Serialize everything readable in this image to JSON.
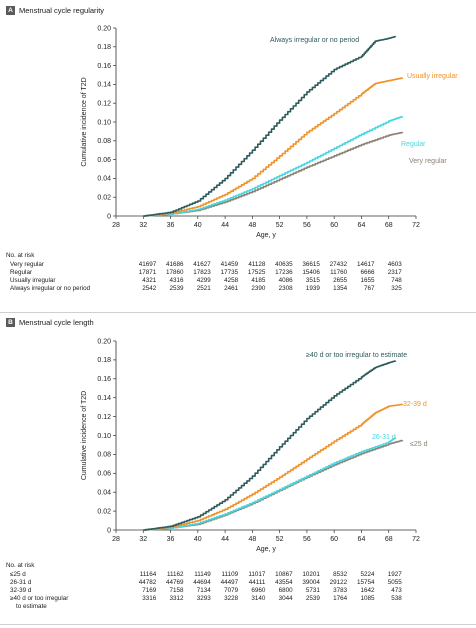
{
  "chart_data": [
    {
      "id": "A",
      "type": "line",
      "panel_label": "A",
      "title": "Menstrual cycle regularity",
      "xlabel": "Age, y",
      "ylabel": "Cumulative incidence of T2D",
      "xlim": [
        28,
        72
      ],
      "ylim": [
        0,
        0.2
      ],
      "xticks": [
        "28",
        "32",
        "36",
        "40",
        "44",
        "48",
        "52",
        "56",
        "60",
        "64",
        "68",
        "72"
      ],
      "yticks": [
        "0",
        "0.02",
        "0.04",
        "0.06",
        "0.08",
        "0.10",
        "0.12",
        "0.14",
        "0.16",
        "0.18",
        "0.20"
      ],
      "grid": false,
      "series": [
        {
          "name": "Very regular",
          "color": "#8a8275",
          "points": [
            [
              32,
              0
            ],
            [
              36,
              0.002
            ],
            [
              40,
              0.006
            ],
            [
              44,
              0.015
            ],
            [
              48,
              0.026
            ],
            [
              52,
              0.039
            ],
            [
              56,
              0.052
            ],
            [
              60,
              0.064
            ],
            [
              64,
              0.076
            ],
            [
              68,
              0.086
            ],
            [
              70,
              0.089
            ]
          ]
        },
        {
          "name": "Regular",
          "color": "#47d6e0",
          "points": [
            [
              32,
              0
            ],
            [
              36,
              0.002
            ],
            [
              40,
              0.007
            ],
            [
              44,
              0.017
            ],
            [
              48,
              0.029
            ],
            [
              52,
              0.043
            ],
            [
              56,
              0.057
            ],
            [
              60,
              0.072
            ],
            [
              64,
              0.087
            ],
            [
              68,
              0.101
            ],
            [
              70,
              0.106
            ]
          ]
        },
        {
          "name": "Usually irregular",
          "color": "#f0922a",
          "points": [
            [
              32,
              0
            ],
            [
              36,
              0.003
            ],
            [
              40,
              0.01
            ],
            [
              44,
              0.023
            ],
            [
              48,
              0.04
            ],
            [
              52,
              0.064
            ],
            [
              56,
              0.089
            ],
            [
              60,
              0.109
            ],
            [
              64,
              0.13
            ],
            [
              66,
              0.141
            ],
            [
              68,
              0.144
            ],
            [
              70,
              0.147
            ]
          ]
        },
        {
          "name": "Always irregular or no period",
          "color": "#2e5b5b",
          "points": [
            [
              32,
              0
            ],
            [
              36,
              0.004
            ],
            [
              40,
              0.016
            ],
            [
              44,
              0.04
            ],
            [
              48,
              0.07
            ],
            [
              52,
              0.102
            ],
            [
              56,
              0.132
            ],
            [
              60,
              0.156
            ],
            [
              64,
              0.17
            ],
            [
              66,
              0.186
            ],
            [
              68,
              0.189
            ],
            [
              69,
              0.191
            ]
          ]
        }
      ],
      "annotations": [
        {
          "text": "Always irregular or no period",
          "series": "Always irregular or no period"
        },
        {
          "text": "Usually irregular",
          "series": "Usually irregular"
        },
        {
          "text": "Regular",
          "series": "Regular"
        },
        {
          "text": "Very regular",
          "series": "Very regular"
        }
      ],
      "at_risk": {
        "header": "No. at risk",
        "ages": [
          32,
          36,
          40,
          44,
          48,
          52,
          56,
          60,
          64,
          68
        ],
        "rows": [
          {
            "label": "Very regular",
            "values": [
              "41697",
              "41686",
              "41627",
              "41459",
              "41128",
              "40635",
              "36615",
              "27432",
              "14617",
              "4603"
            ]
          },
          {
            "label": "Regular",
            "values": [
              "17871",
              "17860",
              "17823",
              "17735",
              "17525",
              "17236",
              "15406",
              "11760",
              "6666",
              "2317"
            ]
          },
          {
            "label": "Usually irregular",
            "values": [
              "4321",
              "4316",
              "4299",
              "4258",
              "4185",
              "4086",
              "3515",
              "2655",
              "1655",
              "748"
            ]
          },
          {
            "label": "Always irregular or no period",
            "values": [
              "2542",
              "2539",
              "2521",
              "2461",
              "2390",
              "2308",
              "1939",
              "1354",
              "767",
              "325"
            ]
          }
        ]
      }
    },
    {
      "id": "B",
      "type": "line",
      "panel_label": "B",
      "title": "Menstrual cycle length",
      "xlabel": "Age, y",
      "ylabel": "Cumulative incidence of T2D",
      "xlim": [
        28,
        72
      ],
      "ylim": [
        0,
        0.2
      ],
      "xticks": [
        "28",
        "32",
        "36",
        "40",
        "44",
        "48",
        "52",
        "56",
        "60",
        "64",
        "68",
        "72"
      ],
      "yticks": [
        "0",
        "0.02",
        "0.04",
        "0.06",
        "0.08",
        "0.10",
        "0.12",
        "0.14",
        "0.16",
        "0.18",
        "0.20"
      ],
      "grid": false,
      "series": [
        {
          "name": "≤25 d",
          "color": "#8a8275",
          "points": [
            [
              32,
              0
            ],
            [
              36,
              0.002
            ],
            [
              40,
              0.006
            ],
            [
              44,
              0.016
            ],
            [
              48,
              0.028
            ],
            [
              52,
              0.042
            ],
            [
              56,
              0.056
            ],
            [
              60,
              0.069
            ],
            [
              64,
              0.081
            ],
            [
              68,
              0.091
            ],
            [
              70,
              0.095
            ]
          ]
        },
        {
          "name": "26-31 d",
          "color": "#47d6e0",
          "points": [
            [
              32,
              0
            ],
            [
              36,
              0.002
            ],
            [
              40,
              0.007
            ],
            [
              44,
              0.017
            ],
            [
              48,
              0.029
            ],
            [
              52,
              0.043
            ],
            [
              56,
              0.057
            ],
            [
              60,
              0.071
            ],
            [
              64,
              0.083
            ],
            [
              68,
              0.093
            ],
            [
              69,
              0.098
            ]
          ]
        },
        {
          "name": "32-39 d",
          "color": "#f0922a",
          "points": [
            [
              32,
              0
            ],
            [
              36,
              0.003
            ],
            [
              40,
              0.01
            ],
            [
              44,
              0.022
            ],
            [
              48,
              0.038
            ],
            [
              52,
              0.056
            ],
            [
              56,
              0.075
            ],
            [
              60,
              0.094
            ],
            [
              64,
              0.112
            ],
            [
              66,
              0.124
            ],
            [
              68,
              0.131
            ],
            [
              70,
              0.133
            ]
          ]
        },
        {
          "name": "≥40 d or too irregular to estimate",
          "color": "#2e5b5b",
          "points": [
            [
              32,
              0
            ],
            [
              36,
              0.004
            ],
            [
              40,
              0.014
            ],
            [
              44,
              0.032
            ],
            [
              48,
              0.057
            ],
            [
              52,
              0.088
            ],
            [
              56,
              0.118
            ],
            [
              60,
              0.142
            ],
            [
              64,
              0.162
            ],
            [
              66,
              0.172
            ],
            [
              68,
              0.177
            ],
            [
              69,
              0.179
            ]
          ]
        }
      ],
      "annotations": [
        {
          "text": "≥40 d or too irregular to estimate",
          "series": "≥40 d or too irregular to estimate"
        },
        {
          "text": "32-39 d",
          "series": "32-39 d"
        },
        {
          "text": "26-31 d",
          "series": "26-31 d"
        },
        {
          "text": "≤25 d",
          "series": "≤25 d"
        }
      ],
      "at_risk": {
        "header": "No. at risk",
        "ages": [
          32,
          36,
          40,
          44,
          48,
          52,
          56,
          60,
          64,
          68
        ],
        "rows": [
          {
            "label": "≤25 d",
            "values": [
              "11164",
              "11162",
              "11149",
              "11109",
              "11017",
              "10867",
              "10201",
              "8532",
              "5224",
              "1927"
            ]
          },
          {
            "label": "26-31 d",
            "values": [
              "44782",
              "44769",
              "44694",
              "44497",
              "44111",
              "43554",
              "39004",
              "29122",
              "15754",
              "5055"
            ]
          },
          {
            "label": "32-39 d",
            "values": [
              "7169",
              "7158",
              "7134",
              "7079",
              "6960",
              "6800",
              "5731",
              "3783",
              "1642",
              "473"
            ]
          },
          {
            "label": "≥40 d or too irregular\nto estimate",
            "values": [
              "3316",
              "3312",
              "3293",
              "3228",
              "3140",
              "3044",
              "2539",
              "1764",
              "1085",
              "538"
            ]
          }
        ]
      }
    }
  ]
}
